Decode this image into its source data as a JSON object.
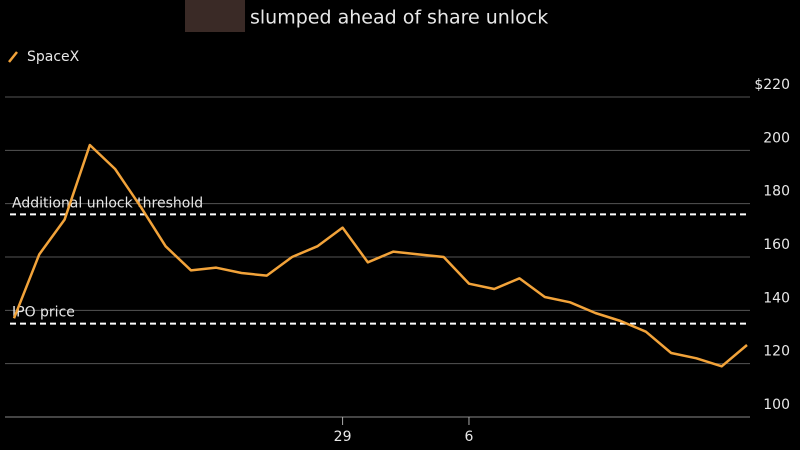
{
  "chart_data": {
    "type": "line",
    "subtitle": "slumped ahead of share unlock",
    "categories": [
      null,
      null,
      null,
      null,
      null,
      null,
      null,
      null,
      null,
      null,
      null,
      null,
      null,
      "29",
      null,
      null,
      null,
      null,
      "6",
      null,
      null,
      null,
      null,
      null,
      null,
      null,
      null,
      null,
      null,
      null
    ],
    "series": [
      {
        "name": "SpaceX",
        "color": "#f2a33a",
        "values": [
          137,
          161,
          174,
          202,
          193,
          179,
          164,
          155,
          156,
          154,
          153,
          160,
          164,
          171,
          158,
          162,
          161,
          160,
          150,
          148,
          152,
          145,
          143,
          139,
          136,
          132,
          124,
          122,
          119,
          127
        ]
      }
    ],
    "ylim": [
      100,
      220
    ],
    "yticks": [
      100,
      120,
      140,
      160,
      180,
      200,
      {
        "value": 220,
        "label": "$220"
      }
    ],
    "grid": true,
    "annotations": [
      {
        "label": "Additional unlock threshold",
        "value": 176
      },
      {
        "label": "IPO price",
        "value": 135
      }
    ]
  }
}
